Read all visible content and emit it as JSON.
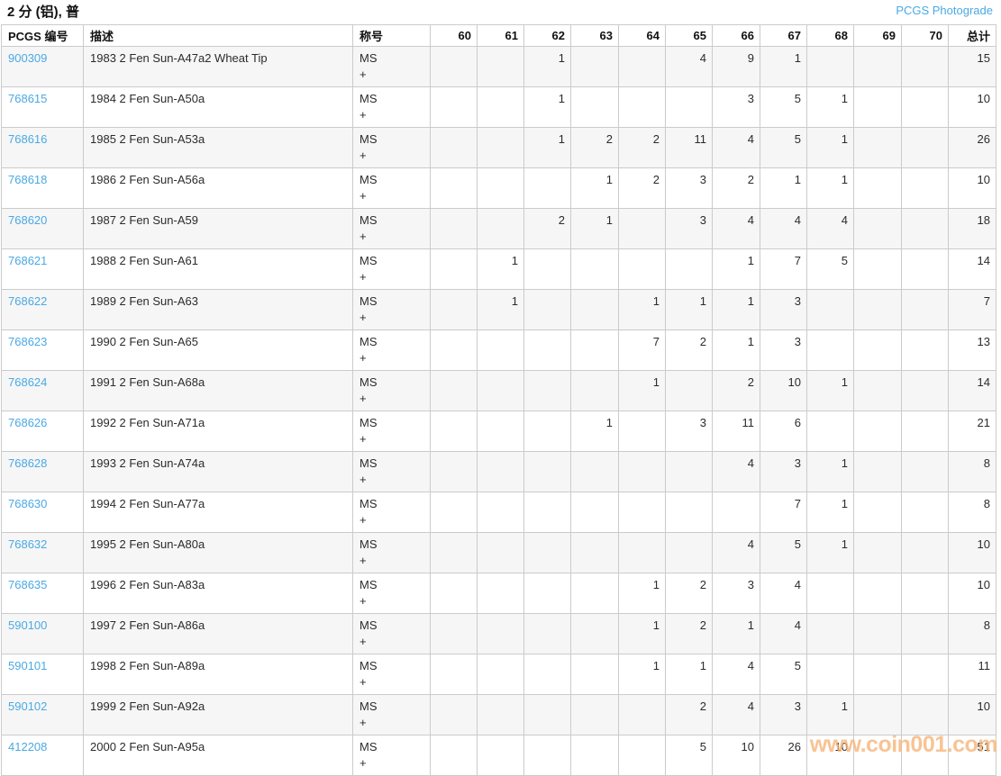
{
  "page": {
    "title": "2 分 (铝), 普",
    "photograde_link": "PCGS Photograde"
  },
  "colors": {
    "link_blue": "#4aa9e4",
    "row_stripe": "#f6f6f6",
    "cell_border": "#cbcbcb",
    "watermark_orange": "#f6b274",
    "text_dark": "#2b2b2b"
  },
  "watermark": "www.coin001.com",
  "table": {
    "headers": [
      "PCGS 编号",
      "描述",
      "称号",
      "60",
      "61",
      "62",
      "63",
      "64",
      "65",
      "66",
      "67",
      "68",
      "69",
      "70",
      "总计"
    ],
    "grade_keys": [
      "60",
      "61",
      "62",
      "63",
      "64",
      "65",
      "66",
      "67",
      "68",
      "69",
      "70"
    ],
    "rows": [
      {
        "pcgs": "900309",
        "desc": "1983 2 Fen Sun-A47a2 Wheat Tip",
        "designation": [
          "MS",
          "+"
        ],
        "grades": {
          "62": "1",
          "65": "4",
          "66": "9",
          "67": "1"
        },
        "total": "15"
      },
      {
        "pcgs": "768615",
        "desc": "1984 2 Fen Sun-A50a",
        "designation": [
          "MS",
          "+"
        ],
        "grades": {
          "62": "1",
          "66": "3",
          "67": "5",
          "68": "1"
        },
        "total": "10"
      },
      {
        "pcgs": "768616",
        "desc": "1985 2 Fen Sun-A53a",
        "designation": [
          "MS",
          "+"
        ],
        "grades": {
          "62": "1",
          "63": "2",
          "64": "2",
          "65": "11",
          "66": "4",
          "67": "5",
          "68": "1"
        },
        "total": "26"
      },
      {
        "pcgs": "768618",
        "desc": "1986 2 Fen Sun-A56a",
        "designation": [
          "MS",
          "+"
        ],
        "grades": {
          "63": "1",
          "64": "2",
          "65": "3",
          "66": "2",
          "67": "1",
          "68": "1"
        },
        "total": "10"
      },
      {
        "pcgs": "768620",
        "desc": "1987 2 Fen Sun-A59",
        "designation": [
          "MS",
          "+"
        ],
        "grades": {
          "62": "2",
          "63": "1",
          "65": "3",
          "66": "4",
          "67": "4",
          "68": "4"
        },
        "total": "18"
      },
      {
        "pcgs": "768621",
        "desc": "1988 2 Fen Sun-A61",
        "designation": [
          "MS",
          "+"
        ],
        "grades": {
          "61": "1",
          "66": "1",
          "67": "7",
          "68": "5"
        },
        "total": "14"
      },
      {
        "pcgs": "768622",
        "desc": "1989 2 Fen Sun-A63",
        "designation": [
          "MS",
          "+"
        ],
        "grades": {
          "61": "1",
          "64": "1",
          "65": "1",
          "66": "1",
          "67": "3"
        },
        "total": "7"
      },
      {
        "pcgs": "768623",
        "desc": "1990 2 Fen Sun-A65",
        "designation": [
          "MS",
          "+"
        ],
        "grades": {
          "64": "7",
          "65": "2",
          "66": "1",
          "67": "3"
        },
        "total": "13"
      },
      {
        "pcgs": "768624",
        "desc": "1991 2 Fen Sun-A68a",
        "designation": [
          "MS",
          "+"
        ],
        "grades": {
          "64": "1",
          "66": "2",
          "67": "10",
          "68": "1"
        },
        "total": "14"
      },
      {
        "pcgs": "768626",
        "desc": "1992 2 Fen Sun-A71a",
        "designation": [
          "MS",
          "+"
        ],
        "grades": {
          "63": "1",
          "65": "3",
          "66": "11",
          "67": "6"
        },
        "total": "21"
      },
      {
        "pcgs": "768628",
        "desc": "1993 2 Fen Sun-A74a",
        "designation": [
          "MS",
          "+"
        ],
        "grades": {
          "66": "4",
          "67": "3",
          "68": "1"
        },
        "total": "8"
      },
      {
        "pcgs": "768630",
        "desc": "1994 2 Fen Sun-A77a",
        "designation": [
          "MS",
          "+"
        ],
        "grades": {
          "67": "7",
          "68": "1"
        },
        "total": "8"
      },
      {
        "pcgs": "768632",
        "desc": "1995 2 Fen Sun-A80a",
        "designation": [
          "MS",
          "+"
        ],
        "grades": {
          "66": "4",
          "67": "5",
          "68": "1"
        },
        "total": "10"
      },
      {
        "pcgs": "768635",
        "desc": "1996 2 Fen Sun-A83a",
        "designation": [
          "MS",
          "+"
        ],
        "grades": {
          "64": "1",
          "65": "2",
          "66": "3",
          "67": "4"
        },
        "total": "10"
      },
      {
        "pcgs": "590100",
        "desc": "1997 2 Fen Sun-A86a",
        "designation": [
          "MS",
          "+"
        ],
        "grades": {
          "64": "1",
          "65": "2",
          "66": "1",
          "67": "4"
        },
        "total": "8"
      },
      {
        "pcgs": "590101",
        "desc": "1998 2 Fen Sun-A89a",
        "designation": [
          "MS",
          "+"
        ],
        "grades": {
          "64": "1",
          "65": "1",
          "66": "4",
          "67": "5"
        },
        "total": "11"
      },
      {
        "pcgs": "590102",
        "desc": "1999 2 Fen Sun-A92a",
        "designation": [
          "MS",
          "+"
        ],
        "grades": {
          "65": "2",
          "66": "4",
          "67": "3",
          "68": "1"
        },
        "total": "10"
      },
      {
        "pcgs": "412208",
        "desc": "2000 2 Fen Sun-A95a",
        "designation": [
          "MS",
          "+"
        ],
        "grades": {
          "65": "5",
          "66": "10",
          "67": "26",
          "68": "10"
        },
        "total": "51"
      }
    ]
  }
}
